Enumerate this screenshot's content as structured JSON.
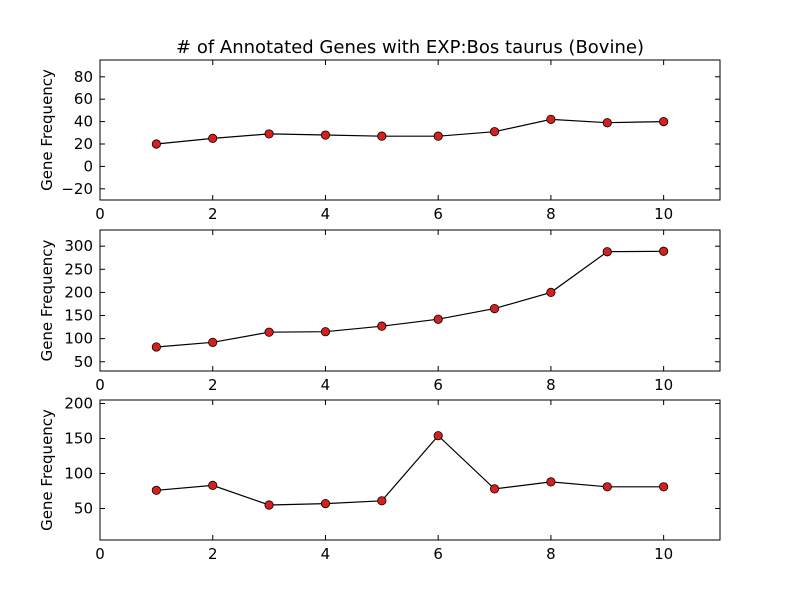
{
  "chart_data": [
    {
      "type": "line",
      "title": "# of Annotated Genes with EXP:Bos taurus (Bovine)",
      "xlabel": "",
      "ylabel": "Gene Frequency",
      "xlim": [
        0,
        11
      ],
      "ylim": [
        -30,
        95
      ],
      "xticks": [
        0,
        2,
        4,
        6,
        8,
        10
      ],
      "yticks": [
        -20,
        0,
        20,
        40,
        60,
        80
      ],
      "x": [
        1,
        2,
        3,
        4,
        5,
        6,
        7,
        8,
        9,
        10
      ],
      "y": [
        20,
        25,
        29,
        28,
        27,
        27,
        31,
        42,
        39,
        40
      ],
      "marker_color": "#d62020",
      "line_color": "#000000"
    },
    {
      "type": "line",
      "title": "",
      "xlabel": "",
      "ylabel": "Gene Frequency",
      "xlim": [
        0,
        11
      ],
      "ylim": [
        30,
        335
      ],
      "xticks": [
        0,
        2,
        4,
        6,
        8,
        10
      ],
      "yticks": [
        50,
        100,
        150,
        200,
        250,
        300
      ],
      "x": [
        1,
        2,
        3,
        4,
        5,
        6,
        7,
        8,
        9,
        10
      ],
      "y": [
        82,
        92,
        114,
        115,
        127,
        142,
        165,
        200,
        288,
        289
      ],
      "marker_color": "#d62020",
      "line_color": "#000000"
    },
    {
      "type": "line",
      "title": "",
      "xlabel": "",
      "ylabel": "Gene Frequency",
      "xlim": [
        0,
        11
      ],
      "ylim": [
        5,
        205
      ],
      "xticks": [
        0,
        2,
        4,
        6,
        8,
        10
      ],
      "yticks": [
        50,
        100,
        150,
        200
      ],
      "x": [
        1,
        2,
        3,
        4,
        5,
        6,
        7,
        8,
        9,
        10
      ],
      "y": [
        76,
        83,
        55,
        57,
        61,
        154,
        78,
        88,
        81,
        81
      ],
      "marker_color": "#d62020",
      "line_color": "#000000"
    }
  ]
}
